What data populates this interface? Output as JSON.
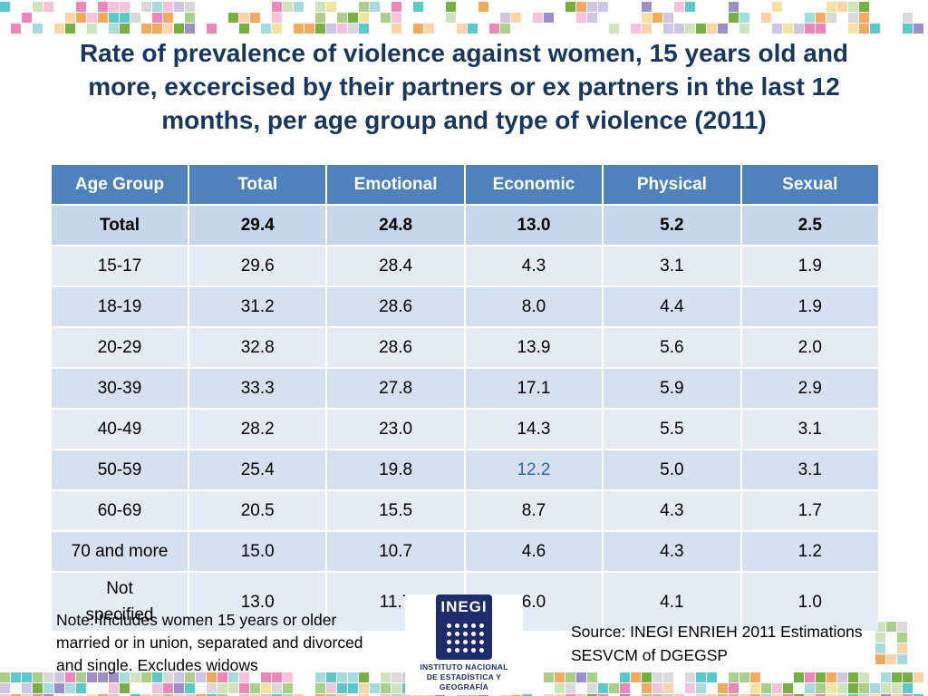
{
  "slide": {
    "title_lines": [
      "Rate of prevalence of violence against women, 15 years old and",
      "more, excercised by their partners or ex partners in the last 12",
      "months, per age group and type of violence (2011)"
    ]
  },
  "table": {
    "headers": [
      "Age Group",
      "Total",
      "Emotional",
      "Economic",
      "Physical",
      "Sexual"
    ],
    "rows": [
      {
        "label": "Total",
        "bold": true,
        "values": [
          "29.4",
          "24.8",
          "13.0",
          "5.2",
          "2.5"
        ]
      },
      {
        "label": "15-17",
        "values": [
          "29.6",
          "28.4",
          "4.3",
          "3.1",
          "1.9"
        ]
      },
      {
        "label": "18-19",
        "values": [
          "31.2",
          "28.6",
          "8.0",
          "4.4",
          "1.9"
        ]
      },
      {
        "label": "20-29",
        "values": [
          "32.8",
          "28.6",
          "13.9",
          "5.6",
          "2.0"
        ]
      },
      {
        "label": "30-39",
        "values": [
          "33.3",
          "27.8",
          "17.1",
          "5.9",
          "2.9"
        ]
      },
      {
        "label": "40-49",
        "values": [
          "28.2",
          "23.0",
          "14.3",
          "5.5",
          "3.1"
        ]
      },
      {
        "label": "50-59",
        "values": [
          "25.4",
          "19.8",
          "12.2",
          "5.0",
          "3.1"
        ]
      },
      {
        "label": "60-69",
        "values": [
          "20.5",
          "15.5",
          "8.7",
          "4.3",
          "1.7"
        ]
      },
      {
        "label": "70 and more",
        "values": [
          "15.0",
          "10.7",
          "4.6",
          "4.3",
          "1.2"
        ]
      },
      {
        "label": "Not specified",
        "two_line": true,
        "values": [
          "13.0",
          "11.7",
          "6.0",
          "4.1",
          "1.0"
        ]
      }
    ],
    "special_cell": {
      "row_index": 6,
      "value_index": 2,
      "color": "#31659C"
    }
  },
  "note_lines": [
    "Note: Includes women 15 years or older",
    "married or in union, separated and divorced",
    "and single. Excludes widows"
  ],
  "source_lines": [
    "Source: INEGI ENRIEH 2011 Estimations",
    "SESVCM of DGEGSP"
  ],
  "logo": {
    "wordmark": "INEGI",
    "caption_lines": [
      "INSTITUTO NACIONAL",
      "DE ESTADÍSTICA Y GEOGRAFÍA"
    ]
  },
  "colors": {
    "title_text": "#17375E",
    "header_bg": "#4F81BD",
    "header_text": "#FFFFFF",
    "row_total_bg": "#C7D7EB",
    "row_light_bg": "#E4EBF5",
    "row_dark_bg": "#D5E1F0",
    "logo_navy": "#1D2C6B",
    "mosaic_palette": [
      "#5BC8CC",
      "#A6DCDD",
      "#EC87B9",
      "#F6C3DA",
      "#A9CF8B",
      "#CFE4BC",
      "#F2AA60",
      "#F8D4A8",
      "#9C8EC6",
      "#CFC6E4",
      "#76B043",
      "#D9D9D9",
      "#F4E3A1"
    ]
  }
}
